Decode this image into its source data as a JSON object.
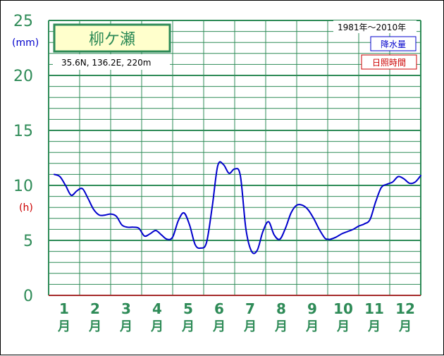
{
  "station": "柳ケ瀬",
  "location": "35.6N,  136.2E,  220m",
  "period": "1981年〜2010年",
  "legend": {
    "precip": "降水量",
    "sunshine": "日照時間"
  },
  "units": {
    "precip": "(mm)",
    "sunshine": "(h)"
  },
  "colors": {
    "grid": "#2e8b57",
    "precip": "#0000cc",
    "sunshine": "#cc0000",
    "label_box": "#ffffcc"
  },
  "chart_data": {
    "type": "line",
    "categories": [
      "1",
      "2",
      "3",
      "4",
      "5",
      "6",
      "7",
      "8",
      "9",
      "10",
      "11",
      "12"
    ],
    "month_char": "月",
    "y_ticks": [
      "0",
      "5",
      "10",
      "15",
      "20",
      "25"
    ],
    "ylim": [
      0,
      25
    ],
    "grid": true,
    "series": [
      {
        "name": "降水量",
        "color": "#0000cc",
        "x": [
          0.5,
          1.0,
          1.5,
          2.0,
          2.5,
          3.0,
          3.5,
          4.0,
          4.5,
          5.0,
          5.5,
          6.0,
          6.5,
          7.0,
          7.5,
          8.0,
          8.5,
          9.0,
          9.5,
          10.0,
          10.5,
          11.0,
          11.5,
          12.0,
          12.5,
          13.0,
          13.5,
          14.0,
          14.5,
          15.0,
          15.5,
          16.0,
          16.5,
          17.0,
          17.5,
          18.0,
          18.5,
          19.0,
          19.5,
          20.0,
          20.5,
          21.0,
          21.5,
          22.0,
          22.5,
          23.0,
          23.5,
          24.0,
          24.5,
          24.8,
          25.0
        ],
        "values": [
          11.0,
          10.8,
          10.0,
          9.1,
          9.5,
          9.7,
          8.8,
          7.8,
          7.3,
          7.3,
          7.4,
          7.2,
          6.4,
          6.2,
          6.2,
          6.1,
          5.4,
          5.6,
          5.9,
          5.5,
          5.1,
          5.3,
          6.8,
          7.5,
          6.4,
          4.6,
          4.3,
          4.8,
          8.0,
          11.8,
          11.9,
          11.1,
          11.5,
          10.9,
          6.0,
          4.0,
          4.1,
          5.8,
          6.7,
          5.5,
          5.1,
          6.1,
          7.5,
          8.2,
          8.2,
          7.8,
          7.0,
          6.0,
          5.2,
          5.1,
          5.1
        ]
      }
    ],
    "series_tail": {
      "x": [
        25.5,
        26.0,
        26.5,
        27.0,
        27.5,
        28.0,
        28.5,
        29.0,
        29.5,
        30.0,
        30.5,
        31.0,
        31.5,
        32.0,
        32.5,
        33.0
      ],
      "values": [
        5.3,
        5.6,
        5.8,
        6.0,
        6.3,
        6.5,
        6.9,
        8.5,
        9.8,
        10.1,
        10.3,
        10.8,
        10.6,
        10.2,
        10.3,
        10.9
      ]
    }
  }
}
